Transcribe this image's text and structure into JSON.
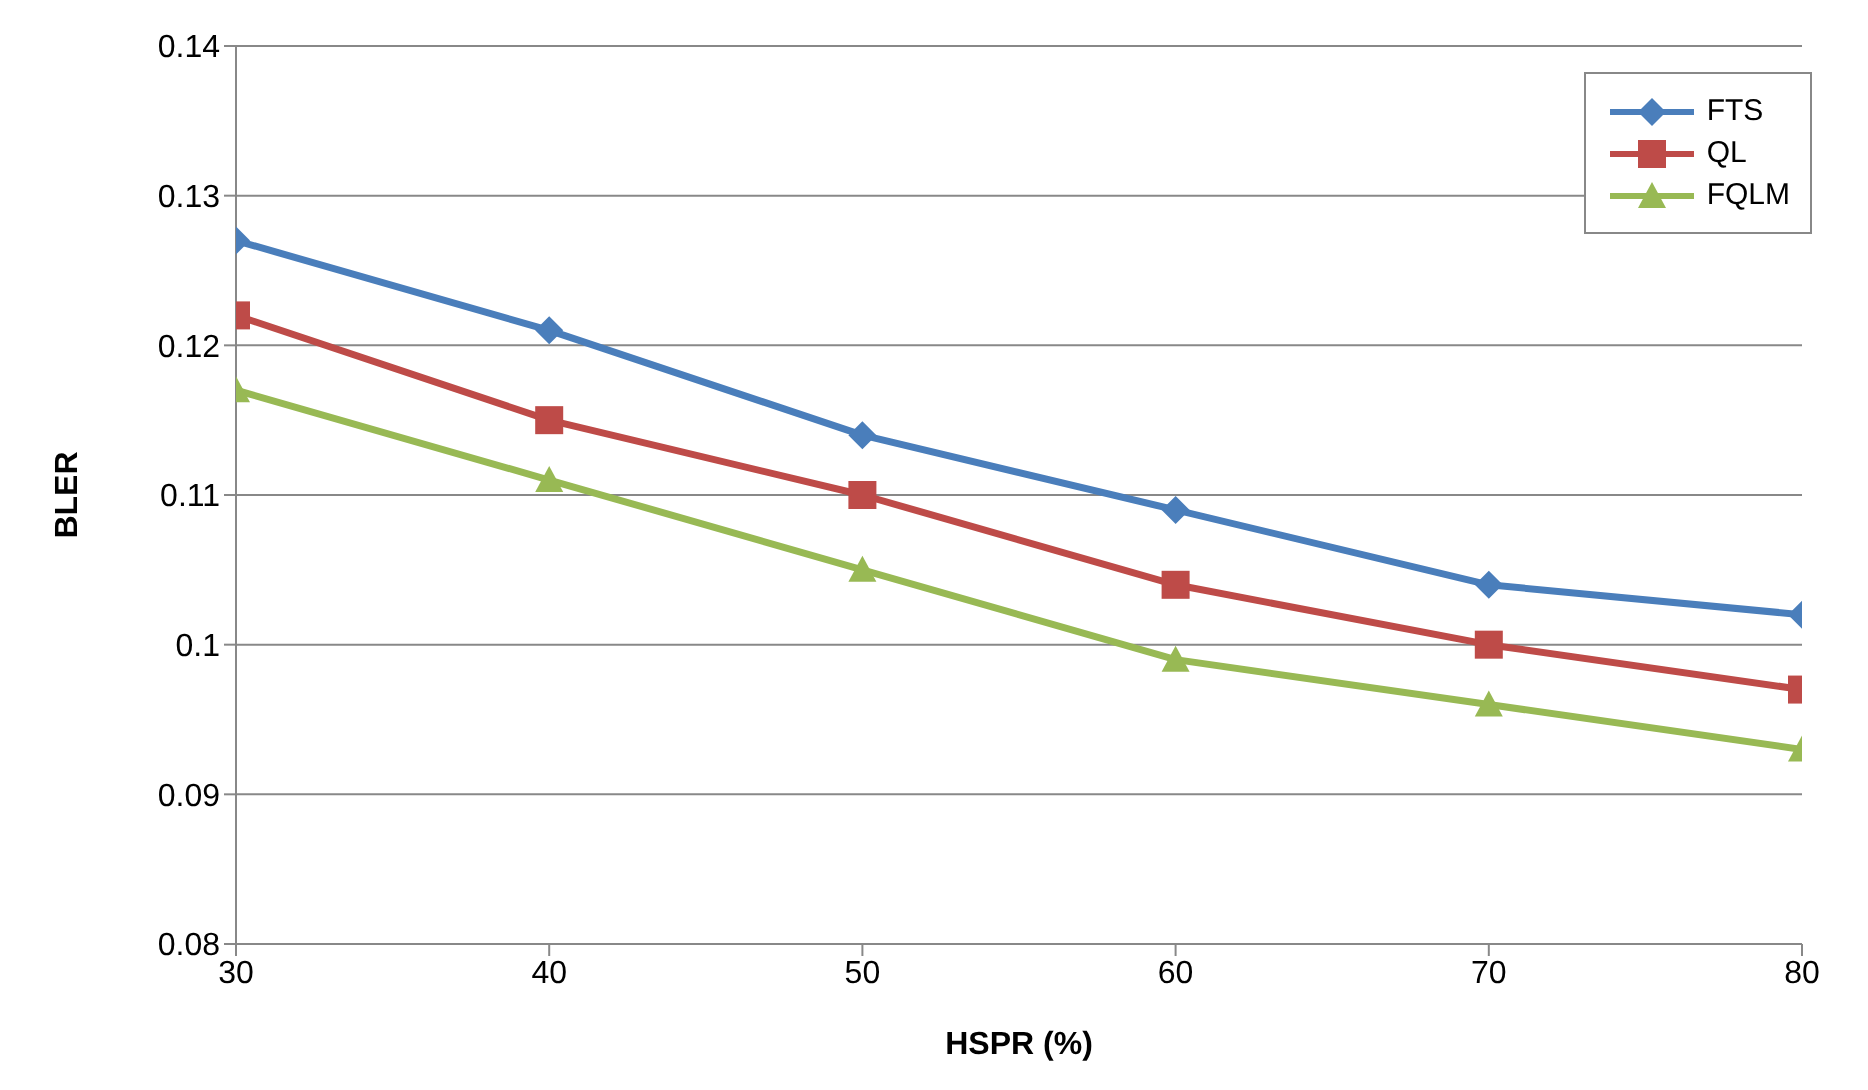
{
  "chart_data": {
    "type": "line",
    "xlabel": "HSPR (%)",
    "ylabel": "BLER",
    "x": [
      30,
      40,
      50,
      60,
      70,
      80
    ],
    "xlim": [
      30,
      80
    ],
    "xticks": [
      30,
      40,
      50,
      60,
      70,
      80
    ],
    "ylim": [
      0.08,
      0.14
    ],
    "yticks": [
      0.08,
      0.09,
      0.1,
      0.11,
      0.12,
      0.13,
      0.14
    ],
    "grid": "y",
    "legend": "top right",
    "series": [
      {
        "name": "FTS",
        "color": "#4a7ebb",
        "marker": "diamond",
        "values": [
          0.127,
          0.121,
          0.114,
          0.109,
          0.104,
          0.102
        ]
      },
      {
        "name": "QL",
        "color": "#be4b48",
        "marker": "square",
        "values": [
          0.122,
          0.115,
          0.11,
          0.104,
          0.1,
          0.097
        ]
      },
      {
        "name": "FQLM",
        "color": "#98b954",
        "marker": "triangle",
        "values": [
          0.117,
          0.111,
          0.105,
          0.099,
          0.096,
          0.093
        ]
      }
    ]
  }
}
